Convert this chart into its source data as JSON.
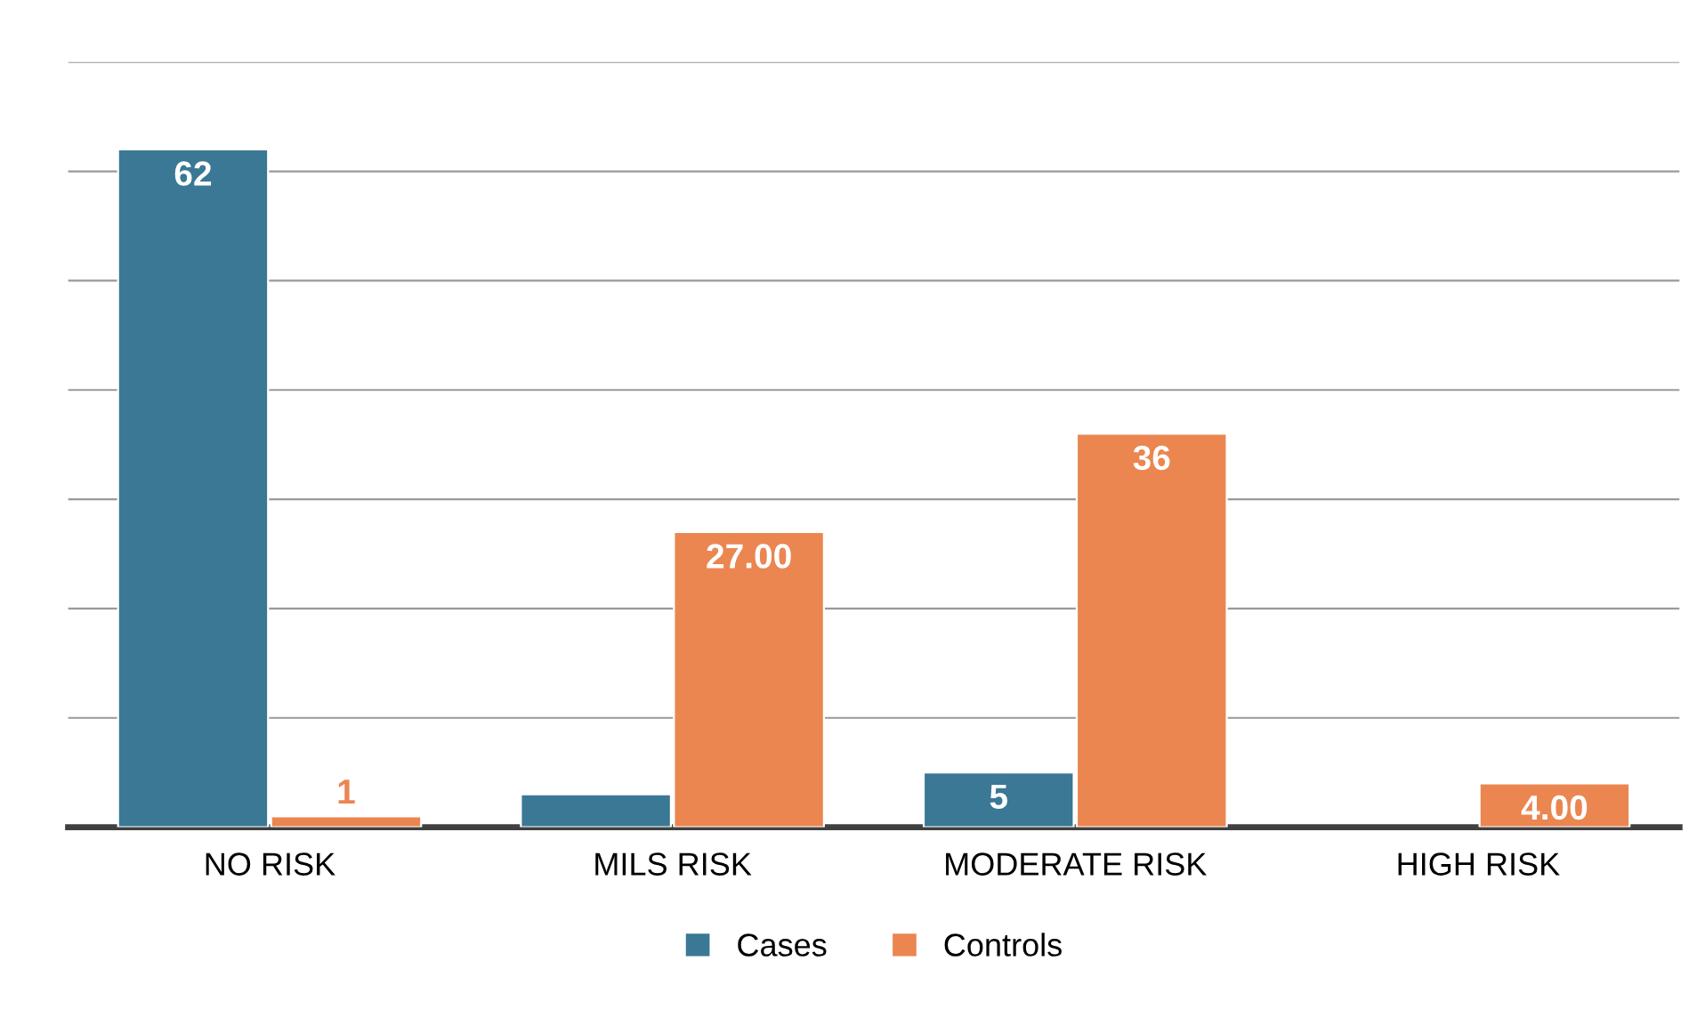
{
  "chart_data": {
    "type": "bar",
    "categories": [
      "NO RISK",
      "MILS RISK",
      "MODERATE RISK",
      "HIGH RISK"
    ],
    "series": [
      {
        "name": "Cases",
        "color": "#3a7895",
        "values": [
          62,
          3,
          5,
          null
        ],
        "value_labels": [
          "62",
          null,
          "5",
          null
        ]
      },
      {
        "name": "Controls",
        "color": "#eb8650",
        "values": [
          1,
          27,
          36,
          4
        ],
        "value_labels": [
          "1",
          "27.00",
          "36",
          "4.00"
        ]
      }
    ],
    "ylim": [
      0,
      70
    ],
    "yticks": [
      {
        "value": 0,
        "label": null
      },
      {
        "value": 10,
        "label": null
      },
      {
        "value": 20,
        "label": null
      },
      {
        "value": 30,
        "label": null
      },
      {
        "value": 40,
        "label": null
      },
      {
        "value": 50,
        "label": null
      },
      {
        "value": 60,
        "label": null
      },
      {
        "value": 70,
        "label": null
      }
    ],
    "tick_labels": "x",
    "grid": "y",
    "legend": "bottom"
  }
}
